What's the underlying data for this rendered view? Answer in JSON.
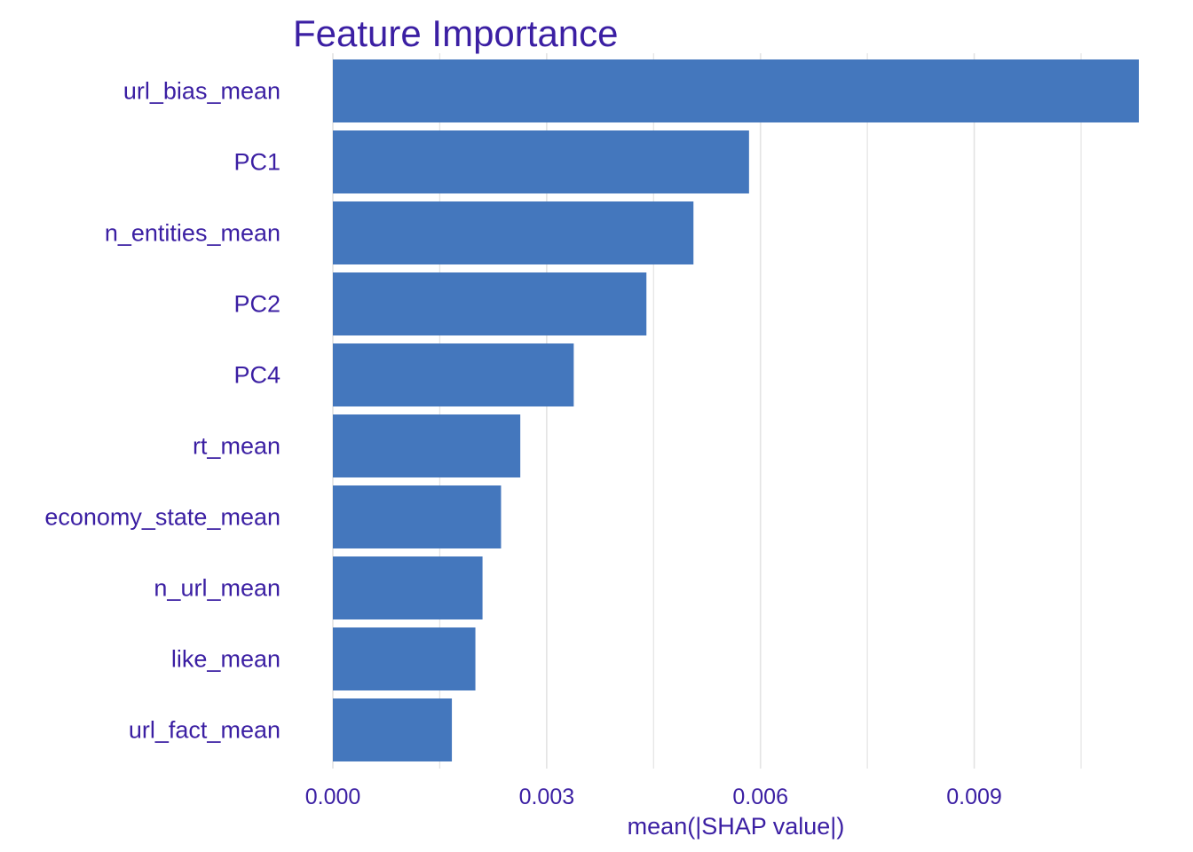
{
  "chart_data": {
    "type": "bar",
    "orientation": "horizontal",
    "title": "Feature Importance",
    "xlabel": "mean(|SHAP value|)",
    "ylabel": "",
    "categories": [
      "url_bias_mean",
      "PC1",
      "n_entities_mean",
      "PC2",
      "PC4",
      "rt_mean",
      "economy_state_mean",
      "n_url_mean",
      "like_mean",
      "url_fact_mean"
    ],
    "values": [
      0.01131,
      0.00584,
      0.00506,
      0.0044,
      0.00338,
      0.00263,
      0.00236,
      0.0021,
      0.002,
      0.00167
    ],
    "xlim": [
      0,
      0.01131
    ],
    "x_ticks": [
      0,
      0.003,
      0.006,
      0.009
    ],
    "x_tick_labels": [
      "0.000",
      "0.003",
      "0.006",
      "0.009"
    ],
    "grid": true,
    "legend": "none"
  },
  "colors": {
    "bar": "#4477bd",
    "text": "#3b1fa3",
    "grid": "#e3e3e3",
    "background": "#ffffff"
  }
}
